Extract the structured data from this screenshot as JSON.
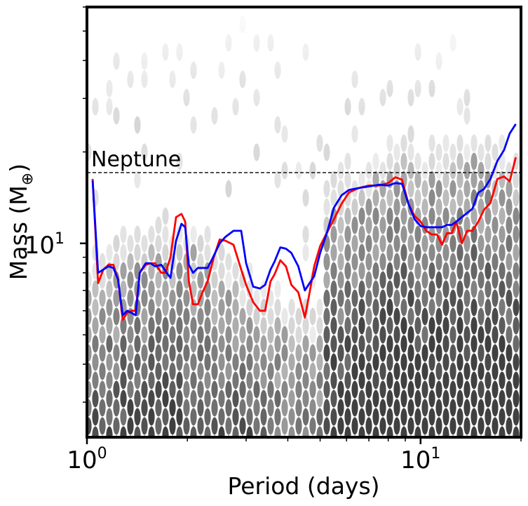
{
  "chart_data": {
    "type": "line",
    "title": "",
    "xlabel": "Period (days)",
    "ylabel_main": "Mass (M",
    "ylabel_sub": "⊕",
    "ylabel_close": ")",
    "x_scale": "log",
    "y_scale": "log",
    "xlim": [
      1.0,
      20.0
    ],
    "ylim": [
      2.3,
      60.0
    ],
    "grid": false,
    "legend": "none",
    "x_ticks": [
      {
        "value": 1,
        "base": "10",
        "exp": "0"
      },
      {
        "value": 10,
        "base": "10",
        "exp": "1"
      }
    ],
    "y_ticks": [
      {
        "value": 10,
        "base": "10",
        "exp": "1"
      }
    ],
    "neptune": {
      "label": "Neptune",
      "mass": 17.1
    },
    "series": [
      {
        "name": "red",
        "color": "#ff0000",
        "x": [
          1.04,
          1.08,
          1.12,
          1.16,
          1.2,
          1.24,
          1.28,
          1.32,
          1.36,
          1.4,
          1.44,
          1.5,
          1.55,
          1.6,
          1.67,
          1.72,
          1.78,
          1.85,
          1.92,
          1.97,
          2.02,
          2.08,
          2.15,
          2.22,
          2.3,
          2.4,
          2.5,
          2.6,
          2.75,
          2.9,
          3.0,
          3.15,
          3.3,
          3.42,
          3.55,
          3.65,
          3.8,
          3.95,
          4.1,
          4.3,
          4.5,
          4.65,
          4.8,
          5.0,
          5.25,
          5.5,
          5.8,
          6.1,
          6.5,
          7.0,
          7.5,
          8.0,
          8.4,
          8.8,
          9.2,
          9.6,
          10.0,
          10.4,
          10.8,
          11.2,
          11.6,
          12.0,
          12.4,
          12.8,
          13.3,
          13.8,
          14.3,
          14.9,
          15.5,
          16.2,
          17.0,
          17.8,
          18.5,
          19.3
        ],
        "values": [
          16.3,
          7.4,
          8.2,
          8.5,
          8.5,
          7.6,
          5.6,
          5.9,
          6.0,
          6.0,
          8.0,
          8.5,
          8.6,
          8.6,
          8.0,
          8.0,
          9.0,
          12.2,
          12.5,
          11.8,
          7.5,
          6.3,
          6.3,
          6.9,
          7.5,
          9.0,
          10.3,
          10.2,
          9.9,
          8.2,
          7.3,
          6.4,
          6.0,
          6.0,
          7.5,
          7.9,
          8.8,
          8.4,
          7.3,
          6.9,
          5.7,
          6.9,
          8.4,
          9.8,
          10.9,
          12.0,
          13.5,
          14.7,
          15.2,
          15.5,
          15.5,
          15.8,
          16.5,
          16.2,
          13.5,
          12.3,
          11.8,
          11.0,
          10.7,
          10.7,
          9.9,
          10.8,
          10.8,
          11.8,
          10.0,
          11.0,
          11.0,
          11.8,
          12.9,
          13.6,
          16.3,
          16.6,
          16.0,
          19.2
        ]
      },
      {
        "name": "blue",
        "color": "#0000ff",
        "x": [
          1.04,
          1.08,
          1.12,
          1.16,
          1.2,
          1.24,
          1.28,
          1.32,
          1.36,
          1.4,
          1.44,
          1.5,
          1.55,
          1.6,
          1.67,
          1.72,
          1.78,
          1.85,
          1.92,
          1.97,
          2.02,
          2.08,
          2.15,
          2.22,
          2.3,
          2.4,
          2.5,
          2.6,
          2.75,
          2.9,
          3.0,
          3.15,
          3.3,
          3.42,
          3.55,
          3.65,
          3.8,
          3.95,
          4.1,
          4.3,
          4.5,
          4.65,
          4.8,
          5.0,
          5.25,
          5.5,
          5.8,
          6.1,
          6.5,
          7.0,
          7.5,
          8.0,
          8.4,
          8.8,
          9.2,
          9.6,
          10.0,
          10.4,
          10.8,
          11.2,
          11.6,
          12.0,
          12.4,
          12.8,
          13.3,
          13.8,
          14.3,
          14.9,
          15.5,
          16.2,
          17.0,
          17.8,
          18.5,
          19.3
        ],
        "values": [
          16.1,
          8.0,
          8.2,
          8.4,
          8.3,
          7.6,
          5.8,
          6.0,
          5.9,
          5.8,
          8.0,
          8.6,
          8.6,
          8.4,
          8.5,
          8.1,
          7.7,
          10.2,
          11.6,
          11.3,
          8.5,
          8.0,
          8.3,
          8.3,
          8.3,
          9.1,
          10.0,
          10.5,
          11.0,
          11.0,
          8.6,
          7.2,
          7.1,
          7.3,
          8.2,
          8.7,
          9.7,
          9.6,
          9.3,
          8.4,
          7.0,
          7.4,
          7.8,
          9.3,
          10.9,
          13.1,
          14.4,
          15.0,
          15.2,
          15.4,
          15.6,
          15.5,
          15.8,
          15.7,
          13.5,
          12.0,
          11.4,
          11.3,
          11.3,
          11.3,
          11.3,
          11.5,
          11.5,
          11.8,
          12.2,
          12.6,
          13.0,
          14.7,
          15.1,
          16.3,
          18.7,
          20.3,
          23.0,
          24.7
        ]
      }
    ]
  }
}
